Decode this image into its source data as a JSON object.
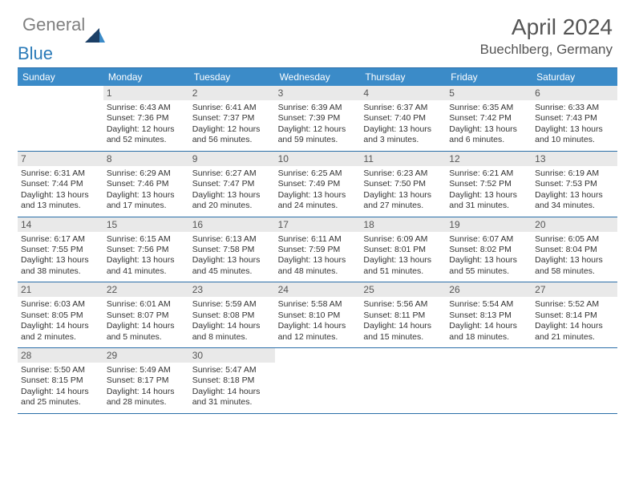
{
  "brand": {
    "part1": "General",
    "part2": "Blue"
  },
  "title": "April 2024",
  "location": "Buechlberg, Germany",
  "colors": {
    "header_bg": "#3b8bc8",
    "border": "#2a6ea8",
    "daynum_bg": "#e9e9e9",
    "text": "#333333",
    "muted": "#555555",
    "logo_grey": "#808080",
    "logo_blue": "#2a7ab8"
  },
  "days_of_week": [
    "Sunday",
    "Monday",
    "Tuesday",
    "Wednesday",
    "Thursday",
    "Friday",
    "Saturday"
  ],
  "weeks": [
    [
      {
        "n": "",
        "sr": "",
        "ss": "",
        "dl1": "",
        "dl2": ""
      },
      {
        "n": "1",
        "sr": "Sunrise: 6:43 AM",
        "ss": "Sunset: 7:36 PM",
        "dl1": "Daylight: 12 hours",
        "dl2": "and 52 minutes."
      },
      {
        "n": "2",
        "sr": "Sunrise: 6:41 AM",
        "ss": "Sunset: 7:37 PM",
        "dl1": "Daylight: 12 hours",
        "dl2": "and 56 minutes."
      },
      {
        "n": "3",
        "sr": "Sunrise: 6:39 AM",
        "ss": "Sunset: 7:39 PM",
        "dl1": "Daylight: 12 hours",
        "dl2": "and 59 minutes."
      },
      {
        "n": "4",
        "sr": "Sunrise: 6:37 AM",
        "ss": "Sunset: 7:40 PM",
        "dl1": "Daylight: 13 hours",
        "dl2": "and 3 minutes."
      },
      {
        "n": "5",
        "sr": "Sunrise: 6:35 AM",
        "ss": "Sunset: 7:42 PM",
        "dl1": "Daylight: 13 hours",
        "dl2": "and 6 minutes."
      },
      {
        "n": "6",
        "sr": "Sunrise: 6:33 AM",
        "ss": "Sunset: 7:43 PM",
        "dl1": "Daylight: 13 hours",
        "dl2": "and 10 minutes."
      }
    ],
    [
      {
        "n": "7",
        "sr": "Sunrise: 6:31 AM",
        "ss": "Sunset: 7:44 PM",
        "dl1": "Daylight: 13 hours",
        "dl2": "and 13 minutes."
      },
      {
        "n": "8",
        "sr": "Sunrise: 6:29 AM",
        "ss": "Sunset: 7:46 PM",
        "dl1": "Daylight: 13 hours",
        "dl2": "and 17 minutes."
      },
      {
        "n": "9",
        "sr": "Sunrise: 6:27 AM",
        "ss": "Sunset: 7:47 PM",
        "dl1": "Daylight: 13 hours",
        "dl2": "and 20 minutes."
      },
      {
        "n": "10",
        "sr": "Sunrise: 6:25 AM",
        "ss": "Sunset: 7:49 PM",
        "dl1": "Daylight: 13 hours",
        "dl2": "and 24 minutes."
      },
      {
        "n": "11",
        "sr": "Sunrise: 6:23 AM",
        "ss": "Sunset: 7:50 PM",
        "dl1": "Daylight: 13 hours",
        "dl2": "and 27 minutes."
      },
      {
        "n": "12",
        "sr": "Sunrise: 6:21 AM",
        "ss": "Sunset: 7:52 PM",
        "dl1": "Daylight: 13 hours",
        "dl2": "and 31 minutes."
      },
      {
        "n": "13",
        "sr": "Sunrise: 6:19 AM",
        "ss": "Sunset: 7:53 PM",
        "dl1": "Daylight: 13 hours",
        "dl2": "and 34 minutes."
      }
    ],
    [
      {
        "n": "14",
        "sr": "Sunrise: 6:17 AM",
        "ss": "Sunset: 7:55 PM",
        "dl1": "Daylight: 13 hours",
        "dl2": "and 38 minutes."
      },
      {
        "n": "15",
        "sr": "Sunrise: 6:15 AM",
        "ss": "Sunset: 7:56 PM",
        "dl1": "Daylight: 13 hours",
        "dl2": "and 41 minutes."
      },
      {
        "n": "16",
        "sr": "Sunrise: 6:13 AM",
        "ss": "Sunset: 7:58 PM",
        "dl1": "Daylight: 13 hours",
        "dl2": "and 45 minutes."
      },
      {
        "n": "17",
        "sr": "Sunrise: 6:11 AM",
        "ss": "Sunset: 7:59 PM",
        "dl1": "Daylight: 13 hours",
        "dl2": "and 48 minutes."
      },
      {
        "n": "18",
        "sr": "Sunrise: 6:09 AM",
        "ss": "Sunset: 8:01 PM",
        "dl1": "Daylight: 13 hours",
        "dl2": "and 51 minutes."
      },
      {
        "n": "19",
        "sr": "Sunrise: 6:07 AM",
        "ss": "Sunset: 8:02 PM",
        "dl1": "Daylight: 13 hours",
        "dl2": "and 55 minutes."
      },
      {
        "n": "20",
        "sr": "Sunrise: 6:05 AM",
        "ss": "Sunset: 8:04 PM",
        "dl1": "Daylight: 13 hours",
        "dl2": "and 58 minutes."
      }
    ],
    [
      {
        "n": "21",
        "sr": "Sunrise: 6:03 AM",
        "ss": "Sunset: 8:05 PM",
        "dl1": "Daylight: 14 hours",
        "dl2": "and 2 minutes."
      },
      {
        "n": "22",
        "sr": "Sunrise: 6:01 AM",
        "ss": "Sunset: 8:07 PM",
        "dl1": "Daylight: 14 hours",
        "dl2": "and 5 minutes."
      },
      {
        "n": "23",
        "sr": "Sunrise: 5:59 AM",
        "ss": "Sunset: 8:08 PM",
        "dl1": "Daylight: 14 hours",
        "dl2": "and 8 minutes."
      },
      {
        "n": "24",
        "sr": "Sunrise: 5:58 AM",
        "ss": "Sunset: 8:10 PM",
        "dl1": "Daylight: 14 hours",
        "dl2": "and 12 minutes."
      },
      {
        "n": "25",
        "sr": "Sunrise: 5:56 AM",
        "ss": "Sunset: 8:11 PM",
        "dl1": "Daylight: 14 hours",
        "dl2": "and 15 minutes."
      },
      {
        "n": "26",
        "sr": "Sunrise: 5:54 AM",
        "ss": "Sunset: 8:13 PM",
        "dl1": "Daylight: 14 hours",
        "dl2": "and 18 minutes."
      },
      {
        "n": "27",
        "sr": "Sunrise: 5:52 AM",
        "ss": "Sunset: 8:14 PM",
        "dl1": "Daylight: 14 hours",
        "dl2": "and 21 minutes."
      }
    ],
    [
      {
        "n": "28",
        "sr": "Sunrise: 5:50 AM",
        "ss": "Sunset: 8:15 PM",
        "dl1": "Daylight: 14 hours",
        "dl2": "and 25 minutes."
      },
      {
        "n": "29",
        "sr": "Sunrise: 5:49 AM",
        "ss": "Sunset: 8:17 PM",
        "dl1": "Daylight: 14 hours",
        "dl2": "and 28 minutes."
      },
      {
        "n": "30",
        "sr": "Sunrise: 5:47 AM",
        "ss": "Sunset: 8:18 PM",
        "dl1": "Daylight: 14 hours",
        "dl2": "and 31 minutes."
      },
      {
        "n": "",
        "sr": "",
        "ss": "",
        "dl1": "",
        "dl2": ""
      },
      {
        "n": "",
        "sr": "",
        "ss": "",
        "dl1": "",
        "dl2": ""
      },
      {
        "n": "",
        "sr": "",
        "ss": "",
        "dl1": "",
        "dl2": ""
      },
      {
        "n": "",
        "sr": "",
        "ss": "",
        "dl1": "",
        "dl2": ""
      }
    ]
  ]
}
